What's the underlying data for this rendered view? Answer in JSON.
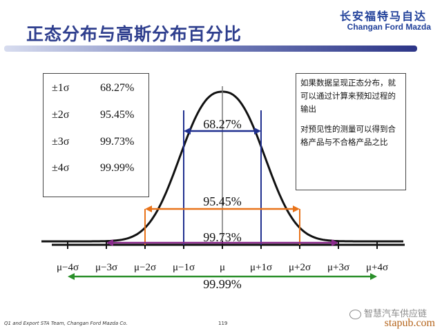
{
  "header": {
    "title": "正态分布与高斯分布百分比",
    "brand_cn": "长安福特马自达",
    "brand_en": "Changan Ford Mazda"
  },
  "sigma_table": [
    {
      "label": "±1σ",
      "value": "68.27%"
    },
    {
      "label": "±2σ",
      "value": "95.45%"
    },
    {
      "label": "±3σ",
      "value": "99.73%"
    },
    {
      "label": "±4σ",
      "value": "99.99%"
    }
  ],
  "notes": [
    "如果数据呈现正态分布，就可以通过计算来预知过程的输出",
    "对预见性的测量可以得到合格产品与不合格产品之比"
  ],
  "axis_ticks": [
    "μ−4σ",
    "μ−3σ",
    "μ−2σ",
    "μ−1σ",
    "μ",
    "μ+1σ",
    "μ+2σ",
    "μ+3σ",
    "μ+4σ"
  ],
  "ranges": [
    {
      "k": 1,
      "label": "68.27%",
      "color": "#1f2f8f"
    },
    {
      "k": 2,
      "label": "95.45%",
      "color": "#e8731a"
    },
    {
      "k": 3,
      "label": "99.73%",
      "color": "#8a2a8c"
    },
    {
      "k": 4,
      "label": "99.99%",
      "color": "#2a8f2a"
    }
  ],
  "footer": {
    "left": "Q1 and Export STA Team, Changan Ford Mazda Co.",
    "page": "119",
    "wechat": "智慧汽车供应链",
    "site": "stapub.com"
  }
}
